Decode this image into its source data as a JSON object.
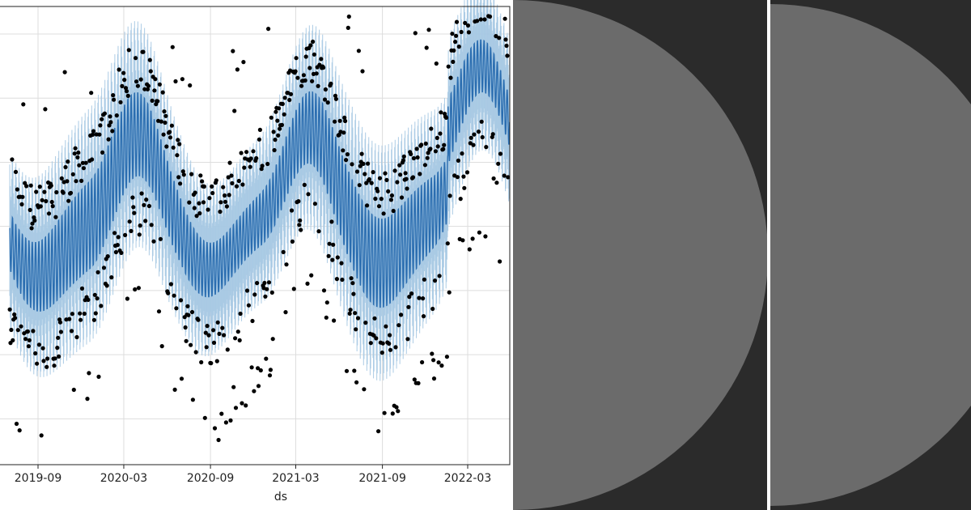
{
  "chart_data": {
    "type": "scatter",
    "xlabel": "ds",
    "ylabel": "",
    "x_tick_labels": [
      "2019-09",
      "2020-03",
      "2020-09",
      "2021-03",
      "2021-09",
      "2022-03"
    ],
    "forecast_band_color": "#a6c8e3",
    "forecast_yhat_color": "#2a6db0",
    "observation_color": "#000000",
    "grid": true
  },
  "side_panels": [
    {
      "name": "left-half-disc-panel",
      "background": "#2b2b2b",
      "shape_color": "#6b6b6b"
    },
    {
      "name": "right-half-disc-panel",
      "background": "#2b2b2b",
      "shape_color": "#6b6b6b"
    }
  ]
}
